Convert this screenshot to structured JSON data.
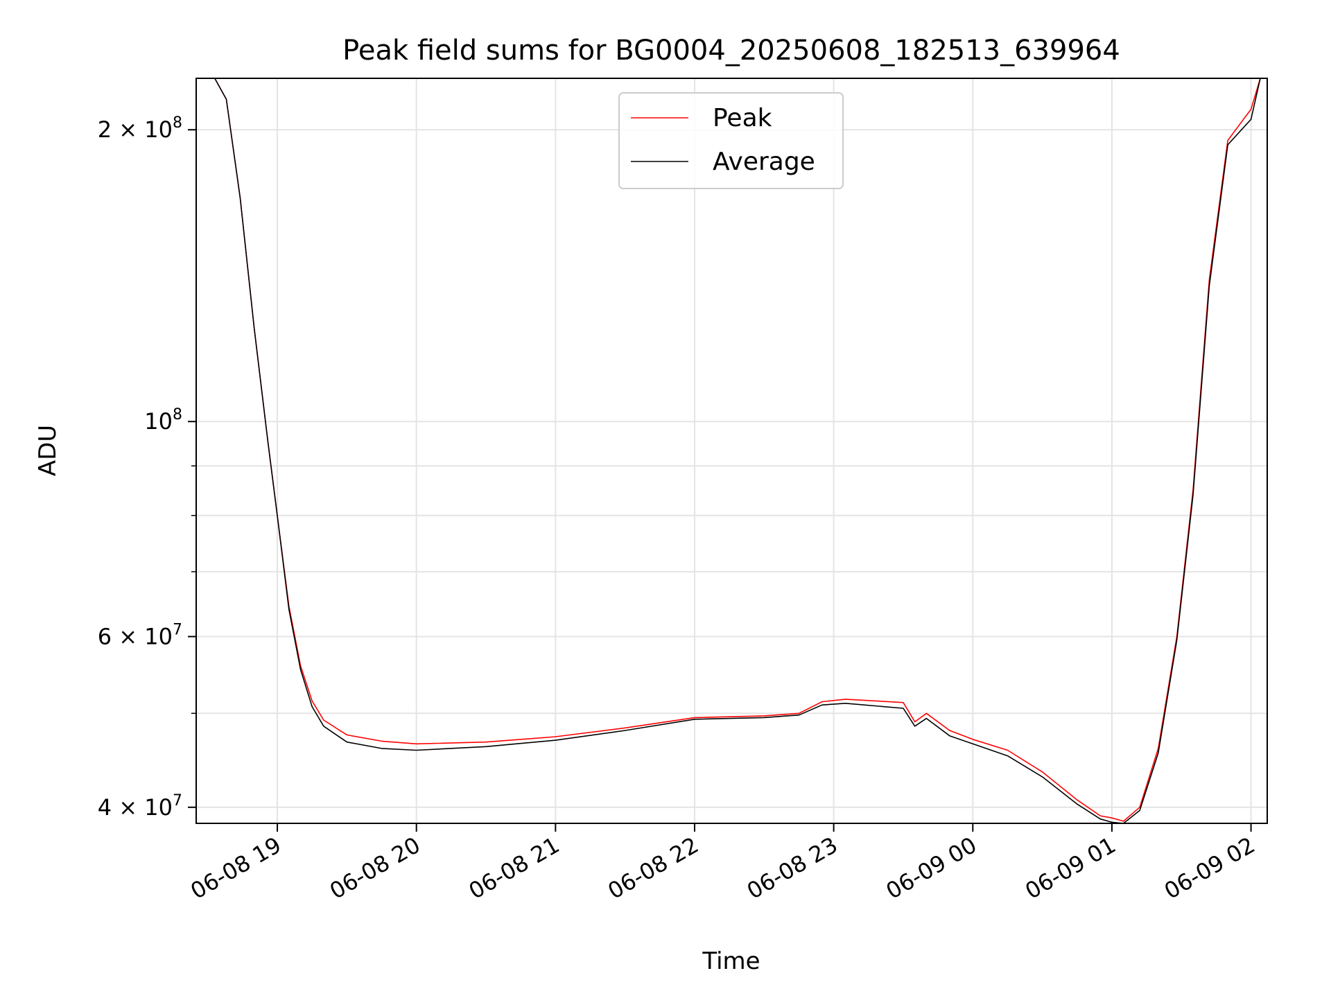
{
  "chart_data": {
    "type": "line",
    "title": "Peak field sums for BG0004_20250608_182513_639964",
    "xlabel": "Time",
    "ylabel": "ADU",
    "yscale": "log",
    "xlim": [
      "2025-06-08 18:25",
      "2025-06-09 02:07"
    ],
    "ylim": [
      38500000,
      226000000
    ],
    "grid": true,
    "legend_position": "top-center",
    "x_ticks": [
      {
        "time": "2025-06-08 19:00",
        "label": "06-08 19"
      },
      {
        "time": "2025-06-08 20:00",
        "label": "06-08 20"
      },
      {
        "time": "2025-06-08 21:00",
        "label": "06-08 21"
      },
      {
        "time": "2025-06-08 22:00",
        "label": "06-08 22"
      },
      {
        "time": "2025-06-08 23:00",
        "label": "06-08 23"
      },
      {
        "time": "2025-06-09 00:00",
        "label": "06-09 00"
      },
      {
        "time": "2025-06-09 01:00",
        "label": "06-09 01"
      },
      {
        "time": "2025-06-09 02:00",
        "label": "06-09 02"
      }
    ],
    "y_major_ticks": [
      {
        "value": 40000000,
        "mantissa": "4",
        "exponent": "7"
      },
      {
        "value": 60000000,
        "mantissa": "6",
        "exponent": "7"
      },
      {
        "value": 100000000,
        "mantissa": "",
        "exponent": "8"
      },
      {
        "value": 200000000,
        "mantissa": "2",
        "exponent": "8"
      }
    ],
    "y_minor_ticks": [
      50000000,
      70000000,
      80000000,
      90000000
    ],
    "series": [
      {
        "name": "Peak",
        "color": "#ff0000",
        "points": [
          [
            "2025-06-08 18:25",
            226000000
          ],
          [
            "2025-06-08 18:33",
            226000000
          ],
          [
            "2025-06-08 18:38",
            215000000
          ],
          [
            "2025-06-08 18:44",
            170000000
          ],
          [
            "2025-06-08 18:50",
            125000000
          ],
          [
            "2025-06-08 18:56",
            95000000
          ],
          [
            "2025-06-08 19:00",
            80000000
          ],
          [
            "2025-06-08 19:05",
            64500000
          ],
          [
            "2025-06-08 19:10",
            56000000
          ],
          [
            "2025-06-08 19:15",
            51500000
          ],
          [
            "2025-06-08 19:20",
            49200000
          ],
          [
            "2025-06-08 19:30",
            47500000
          ],
          [
            "2025-06-08 19:45",
            46800000
          ],
          [
            "2025-06-08 20:00",
            46500000
          ],
          [
            "2025-06-08 20:30",
            46700000
          ],
          [
            "2025-06-08 21:00",
            47300000
          ],
          [
            "2025-06-08 21:30",
            48300000
          ],
          [
            "2025-06-08 22:00",
            49500000
          ],
          [
            "2025-06-08 22:30",
            49700000
          ],
          [
            "2025-06-08 22:45",
            50000000
          ],
          [
            "2025-06-08 22:55",
            51400000
          ],
          [
            "2025-06-08 23:05",
            51700000
          ],
          [
            "2025-06-08 23:30",
            51300000
          ],
          [
            "2025-06-08 23:35",
            49000000
          ],
          [
            "2025-06-08 23:40",
            50000000
          ],
          [
            "2025-06-08 23:50",
            48000000
          ],
          [
            "2025-06-09 00:00",
            47000000
          ],
          [
            "2025-06-09 00:15",
            45800000
          ],
          [
            "2025-06-09 00:30",
            43500000
          ],
          [
            "2025-06-09 00:45",
            40700000
          ],
          [
            "2025-06-09 00:55",
            39200000
          ],
          [
            "2025-06-09 01:00",
            39000000
          ],
          [
            "2025-06-09 01:05",
            38700000
          ],
          [
            "2025-06-09 01:12",
            40000000
          ],
          [
            "2025-06-09 01:20",
            46000000
          ],
          [
            "2025-06-09 01:28",
            60000000
          ],
          [
            "2025-06-09 01:35",
            85000000
          ],
          [
            "2025-06-09 01:42",
            140000000
          ],
          [
            "2025-06-09 01:50",
            195000000
          ],
          [
            "2025-06-09 02:00",
            210000000
          ],
          [
            "2025-06-09 02:04",
            226000000
          ],
          [
            "2025-06-09 02:07",
            226000000
          ]
        ]
      },
      {
        "name": "Average",
        "color": "#000000",
        "points": [
          [
            "2025-06-08 18:25",
            226000000
          ],
          [
            "2025-06-08 18:33",
            226000000
          ],
          [
            "2025-06-08 18:38",
            215000000
          ],
          [
            "2025-06-08 18:44",
            170000000
          ],
          [
            "2025-06-08 18:50",
            125000000
          ],
          [
            "2025-06-08 18:56",
            95000000
          ],
          [
            "2025-06-08 19:00",
            80000000
          ],
          [
            "2025-06-08 19:05",
            64000000
          ],
          [
            "2025-06-08 19:10",
            55500000
          ],
          [
            "2025-06-08 19:15",
            50800000
          ],
          [
            "2025-06-08 19:20",
            48500000
          ],
          [
            "2025-06-08 19:30",
            46700000
          ],
          [
            "2025-06-08 19:45",
            46000000
          ],
          [
            "2025-06-08 20:00",
            45800000
          ],
          [
            "2025-06-08 20:30",
            46200000
          ],
          [
            "2025-06-08 21:00",
            46900000
          ],
          [
            "2025-06-08 21:30",
            48000000
          ],
          [
            "2025-06-08 22:00",
            49300000
          ],
          [
            "2025-06-08 22:30",
            49500000
          ],
          [
            "2025-06-08 22:45",
            49800000
          ],
          [
            "2025-06-08 22:55",
            51000000
          ],
          [
            "2025-06-08 23:05",
            51200000
          ],
          [
            "2025-06-08 23:30",
            50600000
          ],
          [
            "2025-06-08 23:35",
            48500000
          ],
          [
            "2025-06-08 23:40",
            49400000
          ],
          [
            "2025-06-08 23:50",
            47400000
          ],
          [
            "2025-06-09 00:00",
            46500000
          ],
          [
            "2025-06-09 00:15",
            45200000
          ],
          [
            "2025-06-09 00:30",
            43000000
          ],
          [
            "2025-06-09 00:45",
            40300000
          ],
          [
            "2025-06-09 00:55",
            38900000
          ],
          [
            "2025-06-09 01:00",
            38600000
          ],
          [
            "2025-06-09 01:05",
            38500000
          ],
          [
            "2025-06-09 01:12",
            39700000
          ],
          [
            "2025-06-09 01:20",
            45500000
          ],
          [
            "2025-06-09 01:28",
            59500000
          ],
          [
            "2025-06-09 01:35",
            84000000
          ],
          [
            "2025-06-09 01:42",
            138000000
          ],
          [
            "2025-06-09 01:50",
            193000000
          ],
          [
            "2025-06-09 02:00",
            205000000
          ],
          [
            "2025-06-09 02:04",
            226000000
          ],
          [
            "2025-06-09 02:07",
            226000000
          ]
        ]
      }
    ]
  }
}
